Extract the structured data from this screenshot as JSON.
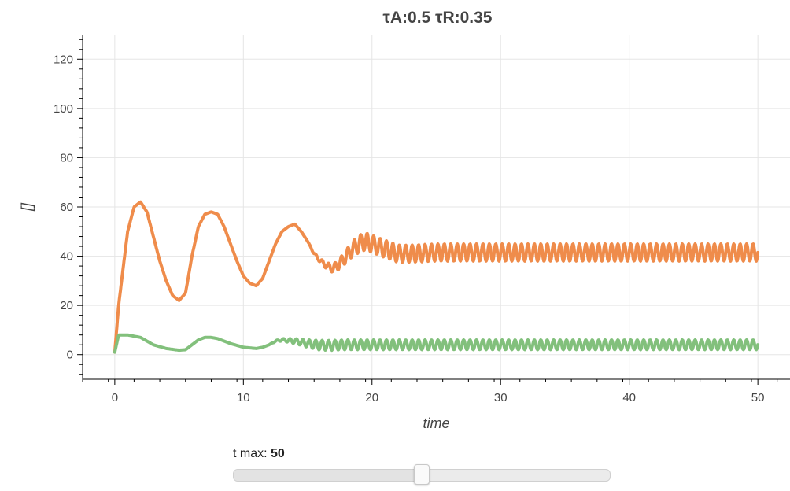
{
  "chart_data": {
    "type": "line",
    "title": "τA:0.5   τR:0.35",
    "xlabel": "time",
    "ylabel": "[]",
    "xlim": [
      -2.5,
      52.5
    ],
    "ylim": [
      -10,
      130
    ],
    "xticks": [
      0,
      10,
      20,
      30,
      40,
      50
    ],
    "yticks": [
      0,
      20,
      40,
      60,
      80,
      100,
      120
    ],
    "grid": true,
    "legend": "none",
    "series": [
      {
        "color": "#ef8c4b",
        "x": [
          0,
          0.3,
          0.6,
          1.0,
          1.5,
          2.0,
          2.5,
          3.0,
          3.5,
          4.0,
          4.5,
          5.0,
          5.5,
          6.0,
          6.5,
          7.0,
          7.5,
          8.0,
          8.5,
          9.0,
          9.5,
          10.0,
          10.5,
          11.0,
          11.5,
          12.0,
          12.5,
          13.0,
          13.5,
          14.0,
          14.5,
          15.0,
          15.5,
          16.0,
          16.5,
          17.0,
          17.5,
          18.0,
          18.5,
          19.0,
          19.5,
          20.0,
          20.5,
          21.0,
          21.5,
          22.0,
          23.0,
          25.0,
          30.0,
          40.0,
          50.0
        ],
        "y": [
          1,
          20,
          33,
          50,
          60,
          62,
          58,
          48,
          38,
          30,
          24,
          22,
          25,
          40,
          52,
          57,
          58,
          57,
          52,
          45,
          38,
          32,
          29,
          28,
          31,
          38,
          45,
          50,
          52,
          53,
          50,
          46,
          41,
          38,
          36,
          35,
          37,
          40,
          43,
          45,
          46,
          45,
          44,
          43,
          42,
          41,
          41,
          41.5,
          41.5,
          41.5,
          41.5
        ],
        "oscillation": {
          "from": 15,
          "period": 0.5,
          "amplitude": 3.5
        }
      },
      {
        "color": "#82c07c",
        "x": [
          0,
          0.3,
          0.6,
          1.0,
          2.0,
          3.0,
          4.0,
          5.0,
          5.5,
          6.0,
          6.5,
          7.0,
          7.5,
          8.0,
          9.0,
          10.0,
          11.0,
          11.5,
          12.0,
          12.5,
          13.0,
          14.0,
          15.0,
          16.0,
          17.0,
          18.0,
          20.0,
          25.0,
          30.0,
          40.0,
          50.0
        ],
        "y": [
          1,
          8,
          8,
          8,
          7,
          4,
          2.5,
          1.8,
          2,
          4,
          6,
          7,
          7,
          6.5,
          4.5,
          3,
          2.5,
          3,
          4,
          5.5,
          6,
          5.5,
          4.5,
          3.8,
          3.8,
          4,
          4,
          4,
          4,
          4,
          4
        ],
        "oscillation": {
          "from": 12,
          "period": 0.5,
          "amplitude": 2
        }
      }
    ]
  },
  "slider": {
    "label": "t max:",
    "value": "50",
    "min": 0,
    "max": 100,
    "current": 50
  }
}
